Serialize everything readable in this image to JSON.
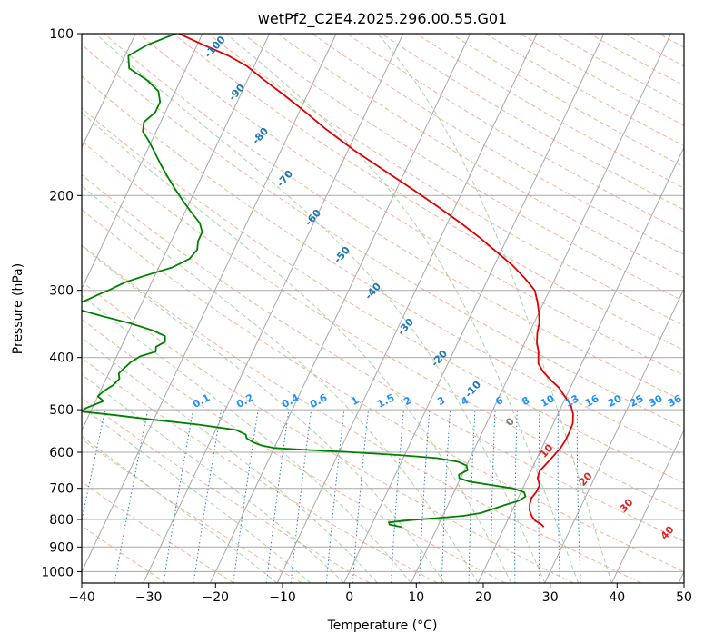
{
  "chart_data": {
    "type": "line",
    "title": "wetPf2_C2E4.2025.296.00.55.G01",
    "xlabel": "Temperature (°C)",
    "ylabel": "Pressure (hPa)",
    "xlim": [
      -40,
      50
    ],
    "ylim": [
      1050,
      100
    ],
    "y_scale": "log",
    "skew_t": true,
    "grid": true,
    "x_ticks": [
      -40,
      -30,
      -20,
      -10,
      0,
      10,
      20,
      30,
      40,
      50
    ],
    "y_ticks": [
      100,
      200,
      300,
      400,
      500,
      600,
      700,
      800,
      900,
      1000
    ],
    "series": [
      {
        "color": "#e00000",
        "points": [
          [
            826,
            25.9
          ],
          [
            815,
            25.2
          ],
          [
            805,
            24.2
          ],
          [
            790,
            23.4
          ],
          [
            770,
            22.6
          ],
          [
            750,
            22.2
          ],
          [
            730,
            22.0
          ],
          [
            710,
            22.3
          ],
          [
            690,
            22.3
          ],
          [
            670,
            21.5
          ],
          [
            650,
            21.3
          ],
          [
            630,
            21.8
          ],
          [
            610,
            22.3
          ],
          [
            590,
            22.8
          ],
          [
            570,
            23.0
          ],
          [
            550,
            23.0
          ],
          [
            530,
            22.9
          ],
          [
            510,
            22.3
          ],
          [
            490,
            21.3
          ],
          [
            470,
            19.6
          ],
          [
            455,
            18.3
          ],
          [
            440,
            16.5
          ],
          [
            425,
            14.8
          ],
          [
            410,
            13.5
          ],
          [
            390,
            12.7
          ],
          [
            375,
            11.8
          ],
          [
            360,
            11.2
          ],
          [
            345,
            10.8
          ],
          [
            330,
            10.0
          ],
          [
            315,
            9.0
          ],
          [
            300,
            7.8
          ],
          [
            285,
            5.5
          ],
          [
            270,
            2.8
          ],
          [
            255,
            -0.5
          ],
          [
            240,
            -4.0
          ],
          [
            225,
            -8.0
          ],
          [
            210,
            -12.5
          ],
          [
            195,
            -17.5
          ],
          [
            180,
            -23.0
          ],
          [
            165,
            -29.0
          ],
          [
            150,
            -35.0
          ],
          [
            140,
            -39.0
          ],
          [
            130,
            -43.5
          ],
          [
            122,
            -47.5
          ],
          [
            115,
            -51.0
          ],
          [
            110,
            -54.5
          ],
          [
            105,
            -59.0
          ],
          [
            100,
            -63.5
          ]
        ]
      },
      {
        "color": "#008000",
        "points": [
          [
            826,
            4.6
          ],
          [
            818,
            2.7
          ],
          [
            810,
            2.4
          ],
          [
            802,
            5.5
          ],
          [
            795,
            9.5
          ],
          [
            788,
            13.0
          ],
          [
            778,
            15.5
          ],
          [
            765,
            17.0
          ],
          [
            752,
            18.5
          ],
          [
            738,
            20.3
          ],
          [
            725,
            21.0
          ],
          [
            712,
            20.5
          ],
          [
            700,
            18.5
          ],
          [
            690,
            15.0
          ],
          [
            680,
            11.5
          ],
          [
            670,
            9.8
          ],
          [
            660,
            9.5
          ],
          [
            648,
            10.5
          ],
          [
            635,
            10.0
          ],
          [
            625,
            8.5
          ],
          [
            615,
            5.0
          ],
          [
            607,
            -1.0
          ],
          [
            600,
            -8.0
          ],
          [
            594,
            -15.0
          ],
          [
            589,
            -20.0
          ],
          [
            583,
            -22.0
          ],
          [
            575,
            -23.5
          ],
          [
            565,
            -24.8
          ],
          [
            556,
            -25.2
          ],
          [
            545,
            -27.0
          ],
          [
            533,
            -33.0
          ],
          [
            522,
            -40.0
          ],
          [
            512,
            -46.0
          ],
          [
            504,
            -51.3
          ],
          [
            497,
            -51.0
          ],
          [
            490,
            -50.0
          ],
          [
            482,
            -48.8
          ],
          [
            472,
            -50.0
          ],
          [
            462,
            -49.5
          ],
          [
            450,
            -48.5
          ],
          [
            438,
            -48.0
          ],
          [
            428,
            -48.5
          ],
          [
            418,
            -48.0
          ],
          [
            408,
            -47.5
          ],
          [
            398,
            -46.5
          ],
          [
            390,
            -44.5
          ],
          [
            382,
            -44.8
          ],
          [
            374,
            -43.8
          ],
          [
            365,
            -44.2
          ],
          [
            356,
            -46.5
          ],
          [
            345,
            -50.5
          ],
          [
            335,
            -55.0
          ],
          [
            327,
            -58.5
          ],
          [
            322,
            -60.2
          ],
          [
            318,
            -60.0
          ],
          [
            313,
            -58.5
          ],
          [
            305,
            -57.0
          ],
          [
            298,
            -55.5
          ],
          [
            290,
            -54.0
          ],
          [
            282,
            -51.5
          ],
          [
            272,
            -48.0
          ],
          [
            262,
            -46.0
          ],
          [
            252,
            -45.5
          ],
          [
            243,
            -46.0
          ],
          [
            234,
            -46.0
          ],
          [
            225,
            -47.0
          ],
          [
            215,
            -49.0
          ],
          [
            205,
            -51.0
          ],
          [
            195,
            -53.0
          ],
          [
            185,
            -55.0
          ],
          [
            175,
            -57.0
          ],
          [
            165,
            -59.0
          ],
          [
            158,
            -60.5
          ],
          [
            152,
            -62.0
          ],
          [
            146,
            -62.5
          ],
          [
            140,
            -61.5
          ],
          [
            134,
            -61.5
          ],
          [
            128,
            -62.5
          ],
          [
            122,
            -65.0
          ],
          [
            116,
            -68.5
          ],
          [
            110,
            -69.5
          ],
          [
            105,
            -67.5
          ],
          [
            100,
            -64.0
          ]
        ]
      }
    ],
    "dry_adiabat_labels": [
      "-100",
      "-90",
      "-80",
      "-70",
      "-60",
      "-50",
      "-40",
      "-30",
      "-20",
      "-10",
      "0",
      "10",
      "20",
      "30",
      "40"
    ],
    "mixing_ratio_labels": [
      "0.1",
      "0.2",
      "0.4",
      "0.6",
      "1",
      "1.5",
      "2",
      "3",
      "4",
      "6",
      "8",
      "10",
      "13",
      "16",
      "20",
      "25",
      "30",
      "36"
    ],
    "colors": {
      "isotherm": "#a8a8a8",
      "isobar": "#a8a8a8",
      "dry_adiabat": "#f5a98b",
      "moist_adiabat": "#9ccf9c",
      "mixing_ratio": "#2a7fd4",
      "label_blue": "#1f77b4",
      "label_red": "#d62728",
      "label_gray": "#808080",
      "mixing_label": "#1e90ff",
      "chestnut": "#d9b48c"
    }
  }
}
